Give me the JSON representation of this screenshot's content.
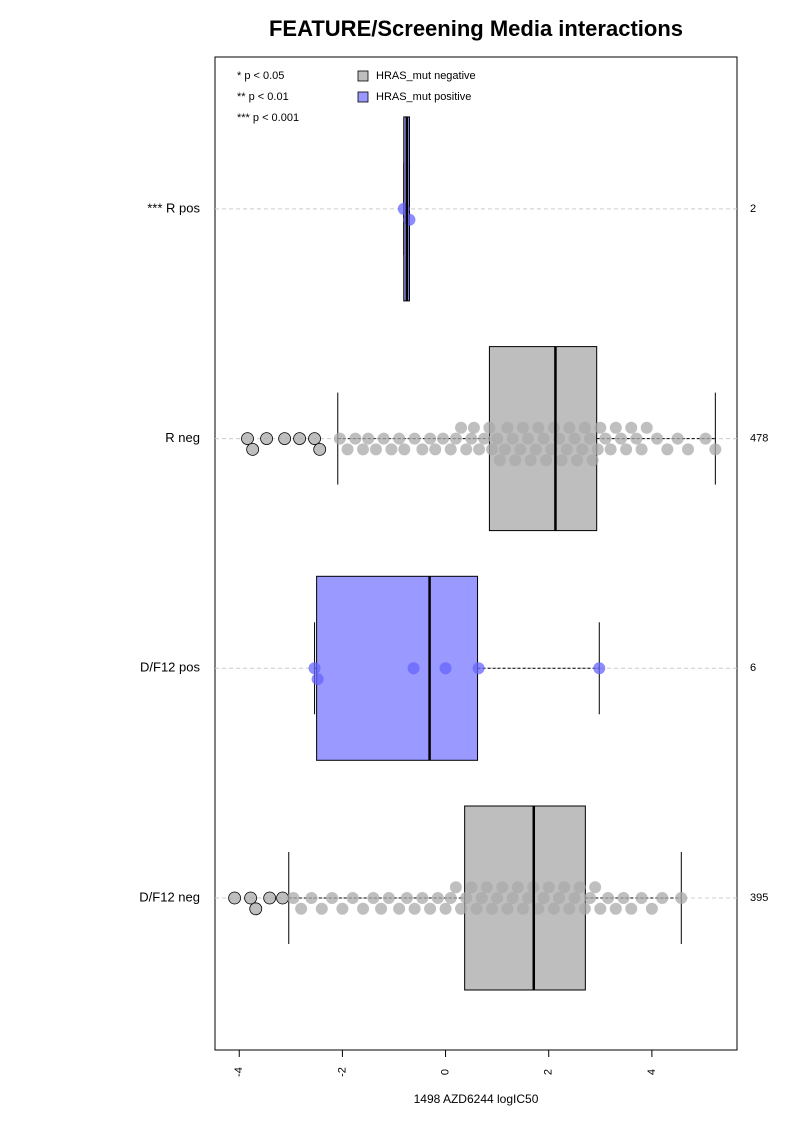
{
  "chart_data": {
    "type": "boxplot",
    "title": "FEATURE/Screening Media interactions",
    "x_label": "1498 AZD6244 logIC50",
    "xlim": [
      -4.47,
      5.65
    ],
    "xticks": [
      -4,
      -2,
      0,
      2,
      4
    ],
    "categories": [
      "D/F12 neg",
      "D/F12 pos",
      "R neg",
      "*** R pos"
    ],
    "counts": [
      395,
      6,
      478,
      2
    ],
    "significance_legend": [
      "* p < 0.05",
      "** p < 0.01",
      "*** p < 0.001"
    ],
    "grid": true,
    "series": [
      {
        "name": "HRAS_mut negative",
        "color": "#bebebe",
        "point_color": "#a9a9a9",
        "boxes": [
          {
            "whisker_low": -3.04,
            "q1": 0.37,
            "median": 1.71,
            "q3": 2.71,
            "whisker_high": 4.57,
            "points": [
              -4.09,
              -3.78,
              -3.68,
              -3.41,
              -3.16,
              -2.95,
              -2.8,
              -2.6,
              -2.4,
              -2.2,
              -2.0,
              -1.8,
              -1.6,
              -1.4,
              -1.25,
              -1.1,
              -0.9,
              -0.75,
              -0.6,
              -0.45,
              -0.3,
              -0.15,
              0.0,
              0.1,
              0.2,
              0.3,
              0.4,
              0.5,
              0.6,
              0.7,
              0.8,
              0.9,
              1.0,
              1.1,
              1.2,
              1.3,
              1.4,
              1.5,
              1.6,
              1.7,
              1.8,
              1.9,
              2.0,
              2.1,
              2.2,
              2.3,
              2.4,
              2.5,
              2.6,
              2.7,
              2.8,
              2.9,
              3.0,
              3.15,
              3.3,
              3.45,
              3.6,
              3.8,
              4.0,
              4.2,
              4.57
            ]
          },
          null,
          {
            "whisker_low": -2.09,
            "q1": 0.85,
            "median": 2.13,
            "q3": 2.93,
            "whisker_high": 5.23,
            "points": [
              -3.84,
              -3.74,
              -3.47,
              -3.12,
              -2.83,
              -2.54,
              -2.44,
              -2.05,
              -1.9,
              -1.75,
              -1.6,
              -1.5,
              -1.35,
              -1.2,
              -1.05,
              -0.9,
              -0.8,
              -0.6,
              -0.45,
              -0.3,
              -0.2,
              -0.05,
              0.1,
              0.2,
              0.3,
              0.4,
              0.5,
              0.55,
              0.65,
              0.75,
              0.85,
              0.9,
              1.0,
              1.05,
              1.15,
              1.2,
              1.3,
              1.35,
              1.45,
              1.5,
              1.6,
              1.65,
              1.75,
              1.8,
              1.9,
              1.95,
              2.05,
              2.1,
              2.2,
              2.25,
              2.35,
              2.4,
              2.5,
              2.55,
              2.65,
              2.7,
              2.8,
              2.85,
              2.95,
              3.0,
              3.1,
              3.2,
              3.3,
              3.4,
              3.5,
              3.6,
              3.7,
              3.8,
              3.9,
              4.1,
              4.3,
              4.5,
              4.7,
              5.04,
              5.23
            ]
          },
          null
        ]
      },
      {
        "name": "HRAS_mut positive",
        "color": "#9999ff",
        "point_color": "#6666ff",
        "boxes": [
          null,
          {
            "whisker_low": -2.54,
            "q1": -2.5,
            "median": -0.31,
            "q3": 0.62,
            "whisker_high": 2.98,
            "points": [
              -2.54,
              -2.48,
              -0.62,
              0.0,
              0.64,
              2.98
            ]
          },
          null,
          {
            "whisker_low": -0.81,
            "q1": -0.81,
            "median": -0.75,
            "q3": -0.7,
            "whisker_high": -0.7,
            "points": [
              -0.81,
              -0.7
            ]
          }
        ]
      }
    ]
  }
}
